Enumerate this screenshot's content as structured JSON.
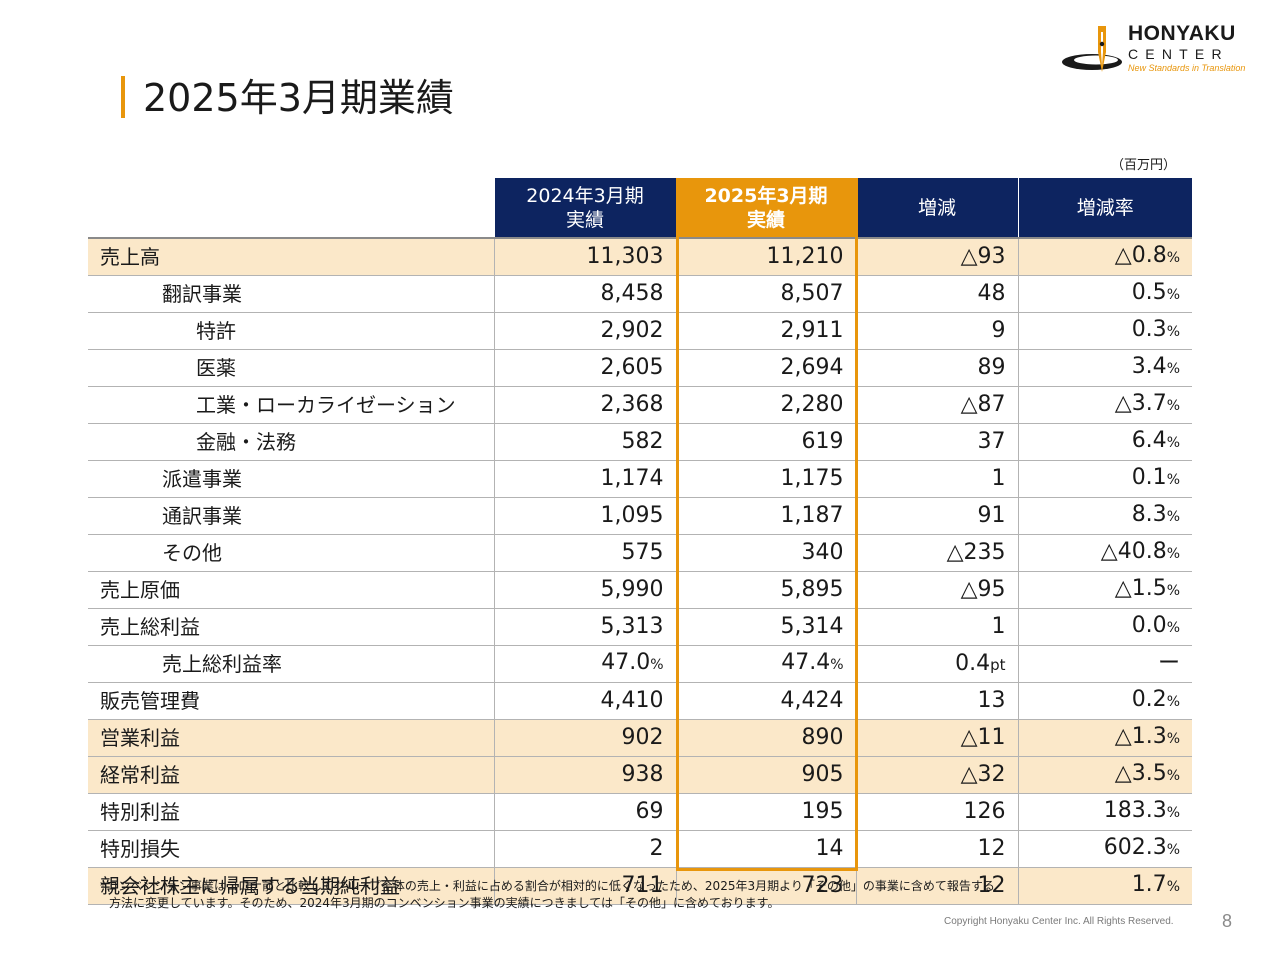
{
  "page": {
    "title": "2025年3月期業績",
    "unit": "（百万円）",
    "page_number": "8",
    "copyright": "Copyright Honyaku Center Inc. All Rights Reserved.",
    "footnote_line1": "*コンベンション事業はコロナ前と比較してグループ全体の売上・利益に占める割合が相対的に低くなったため、2025年3月期より「その他」の事業に含めて報告する",
    "footnote_line2": "方法に変更しています。そのため、2024年3月期のコンベンション事業の実績につきましては「その他」に含めております。"
  },
  "logo": {
    "name": "HONYAKU",
    "sub": "CENTER",
    "tagline": "New Standards in Translation",
    "accent_color": "#e8960c"
  },
  "colors": {
    "header_navy": "#0d2460",
    "header_orange": "#e8960c",
    "highlight_row": "#fbe8c9"
  },
  "table": {
    "headers": {
      "fy2024_line1": "2024年3月期",
      "fy2024_line2": "実績",
      "fy2025_line1": "2025年3月期",
      "fy2025_line2": "実績",
      "change": "増減",
      "change_rate": "増減率"
    },
    "rows": [
      {
        "label": "売上高",
        "fy2024": "11,303",
        "fy2025": "11,210",
        "change": "△93",
        "rate": "△0.8"
      },
      {
        "label": "翻訳事業",
        "fy2024": "8,458",
        "fy2025": "8,507",
        "change": "48",
        "rate": "0.5"
      },
      {
        "label": "特許",
        "fy2024": "2,902",
        "fy2025": "2,911",
        "change": "9",
        "rate": "0.3"
      },
      {
        "label": "医薬",
        "fy2024": "2,605",
        "fy2025": "2,694",
        "change": "89",
        "rate": "3.4"
      },
      {
        "label": "工業・ローカライゼーション",
        "fy2024": "2,368",
        "fy2025": "2,280",
        "change": "△87",
        "rate": "△3.7"
      },
      {
        "label": "金融・法務",
        "fy2024": "582",
        "fy2025": "619",
        "change": "37",
        "rate": "6.4"
      },
      {
        "label": "派遣事業",
        "fy2024": "1,174",
        "fy2025": "1,175",
        "change": "1",
        "rate": "0.1"
      },
      {
        "label": "通訳事業",
        "fy2024": "1,095",
        "fy2025": "1,187",
        "change": "91",
        "rate": "8.3"
      },
      {
        "label": "その他",
        "fy2024": "575",
        "fy2025": "340",
        "change": "△235",
        "rate": "△40.8"
      },
      {
        "label": "売上原価",
        "fy2024": "5,990",
        "fy2025": "5,895",
        "change": "△95",
        "rate": "△1.5"
      },
      {
        "label": "売上総利益",
        "fy2024": "5,313",
        "fy2025": "5,314",
        "change": "1",
        "rate": "0.0"
      },
      {
        "label": "売上総利益率",
        "fy2024": "47.0",
        "fy2025": "47.4",
        "change": "0.4",
        "change_unit": "pt",
        "rate": "ー"
      },
      {
        "label": "販売管理費",
        "fy2024": "4,410",
        "fy2025": "4,424",
        "change": "13",
        "rate": "0.2"
      },
      {
        "label": "営業利益",
        "fy2024": "902",
        "fy2025": "890",
        "change": "△11",
        "rate": "△1.3"
      },
      {
        "label": "経常利益",
        "fy2024": "938",
        "fy2025": "905",
        "change": "△32",
        "rate": "△3.5"
      },
      {
        "label": "特別利益",
        "fy2024": "69",
        "fy2025": "195",
        "change": "126",
        "rate": "183.3"
      },
      {
        "label": "特別損失",
        "fy2024": "2",
        "fy2025": "14",
        "change": "12",
        "rate": "602.3"
      },
      {
        "label": "親会社株主に帰属する当期純利益",
        "fy2024": "711",
        "fy2025": "723",
        "change": "12",
        "rate": "1.7"
      }
    ],
    "percent_sign": "%"
  }
}
